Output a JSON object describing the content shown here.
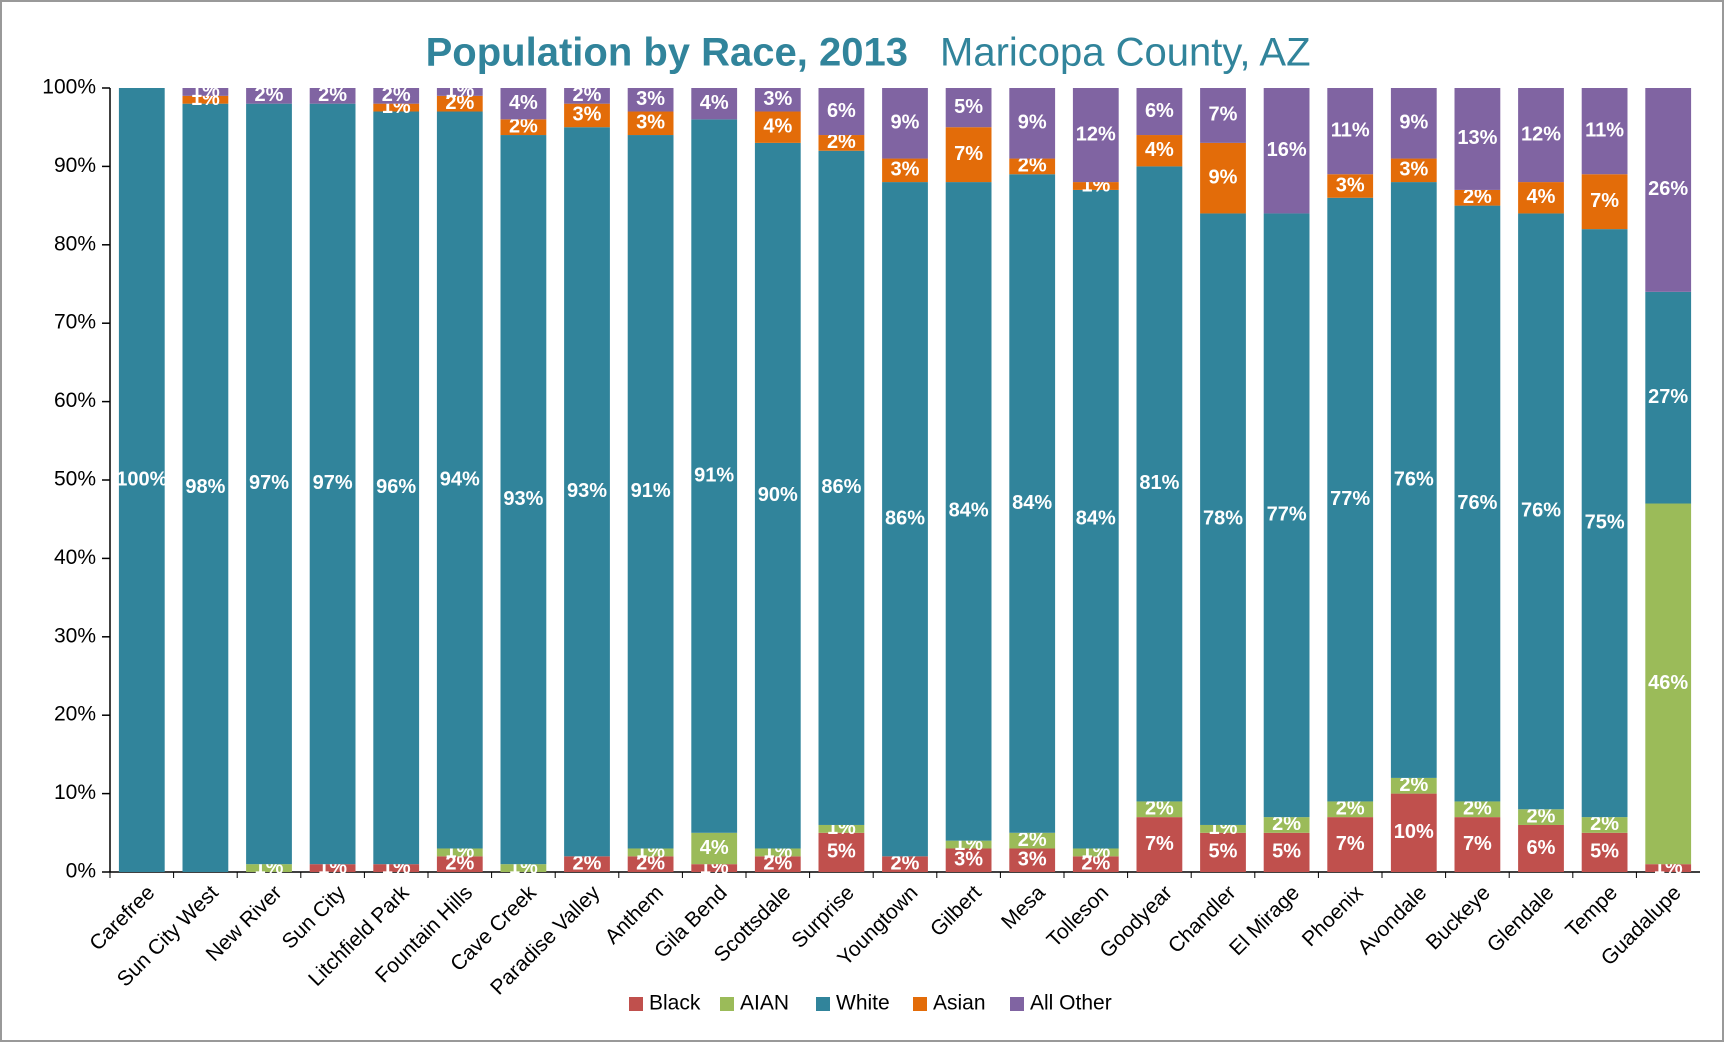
{
  "chart_data": {
    "type": "stacked_bar",
    "title": "Population by Race, 2013",
    "subtitle": "Maricopa County, AZ",
    "categories": [
      "Carefree",
      "Sun City West",
      "New River",
      "Sun City",
      "Litchfield Park",
      "Fountain Hills",
      "Cave Creek",
      "Paradise Valley",
      "Anthem",
      "Gila Bend",
      "Scottsdale",
      "Surprise",
      "Youngtown",
      "Gilbert",
      "Mesa",
      "Tolleson",
      "Goodyear",
      "Chandler",
      "El Mirage",
      "Phoenix",
      "Avondale",
      "Buckeye",
      "Glendale",
      "Tempe",
      "Guadalupe"
    ],
    "series": [
      {
        "name": "Black",
        "color": "#c0504d",
        "values": [
          0,
          0,
          0,
          1,
          1,
          2,
          0,
          2,
          2,
          1,
          2,
          5,
          2,
          3,
          3,
          2,
          7,
          5,
          5,
          7,
          10,
          7,
          6,
          5,
          1
        ],
        "value_labels": [
          null,
          null,
          null,
          "1%",
          "1%",
          "2%",
          null,
          "2%",
          "2%",
          "1%",
          "2%",
          "5%",
          "2%",
          "3%",
          "3%",
          "2%",
          "7%",
          "5%",
          "5%",
          "7%",
          "10%",
          "7%",
          "6%",
          "5%",
          "1%"
        ]
      },
      {
        "name": "AIAN",
        "color": "#9bbb59",
        "values": [
          0,
          0,
          1,
          0,
          0,
          1,
          1,
          0,
          1,
          4,
          1,
          1,
          0,
          1,
          2,
          1,
          2,
          1,
          2,
          2,
          2,
          2,
          2,
          2,
          46
        ],
        "value_labels": [
          null,
          null,
          "1%",
          null,
          null,
          "1%",
          "1%",
          null,
          "1%",
          "4%",
          "1%",
          "1%",
          null,
          "1%",
          "2%",
          "1%",
          "2%",
          "1%",
          "2%",
          "2%",
          "2%",
          "2%",
          "2%",
          "2%",
          "46%"
        ]
      },
      {
        "name": "White",
        "color": "#31849b",
        "values": [
          100,
          98,
          97,
          97,
          96,
          94,
          93,
          93,
          91,
          91,
          90,
          86,
          86,
          84,
          84,
          84,
          81,
          78,
          77,
          77,
          76,
          76,
          76,
          75,
          27
        ],
        "value_labels": [
          "100%",
          "98%",
          "97%",
          "97%",
          "96%",
          "94%",
          "93%",
          "93%",
          "91%",
          "91%",
          "90%",
          "86%",
          "86%",
          "84%",
          "84%",
          "84%",
          "81%",
          "78%",
          "77%",
          "77%",
          "76%",
          "76%",
          "76%",
          "75%",
          "27%"
        ]
      },
      {
        "name": "Asian",
        "color": "#e36c09",
        "values": [
          0,
          1,
          0,
          0,
          1,
          2,
          2,
          3,
          3,
          0,
          4,
          2,
          3,
          7,
          2,
          1,
          4,
          9,
          0,
          3,
          3,
          2,
          4,
          7,
          0
        ],
        "value_labels": [
          null,
          "1%",
          null,
          null,
          "1%",
          "2%",
          "2%",
          "3%",
          "3%",
          null,
          "4%",
          "2%",
          "3%",
          "7%",
          "2%",
          "1%",
          "4%",
          "9%",
          null,
          "3%",
          "3%",
          "2%",
          "4%",
          "7%",
          null
        ]
      },
      {
        "name": "All Other",
        "color": "#8064a2",
        "values": [
          0,
          1,
          2,
          2,
          2,
          1,
          4,
          2,
          3,
          4,
          3,
          6,
          9,
          5,
          9,
          12,
          6,
          7,
          16,
          11,
          9,
          13,
          12,
          11,
          26
        ],
        "value_labels": [
          null,
          "1%",
          "2%",
          "2%",
          "2%",
          "1%",
          "4%",
          "2%",
          "3%",
          "4%",
          "3%",
          "6%",
          "9%",
          "5%",
          "9%",
          "12%",
          "6%",
          "7%",
          "16%",
          "11%",
          "9%",
          "13%",
          "12%",
          "11%",
          "26%"
        ]
      }
    ],
    "ylim": [
      0,
      100
    ],
    "yticks": [
      {
        "value": 0,
        "label": "0%"
      },
      {
        "value": 10,
        "label": "10%"
      },
      {
        "value": 20,
        "label": "20%"
      },
      {
        "value": 30,
        "label": "30%"
      },
      {
        "value": 40,
        "label": "40%"
      },
      {
        "value": 50,
        "label": "50%"
      },
      {
        "value": 60,
        "label": "60%"
      },
      {
        "value": 70,
        "label": "70%"
      },
      {
        "value": 80,
        "label": "80%"
      },
      {
        "value": 90,
        "label": "90%"
      },
      {
        "value": 100,
        "label": "100%"
      }
    ],
    "grid": false,
    "legend": "bottom"
  }
}
